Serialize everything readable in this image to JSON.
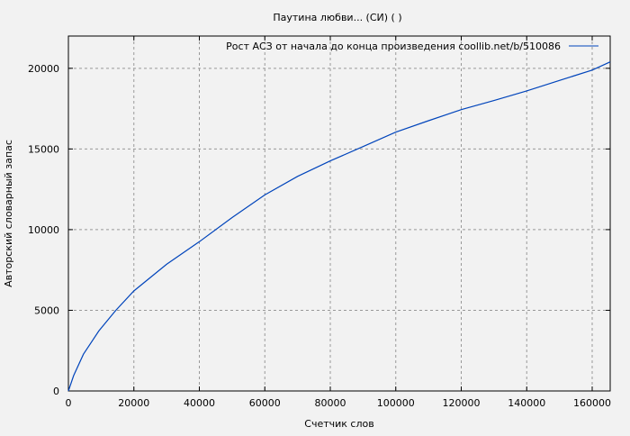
{
  "chart_data": {
    "type": "line",
    "title": "Паутина любви... (СИ) ( )",
    "xlabel": "Счетчик слов",
    "ylabel": "Авторский словарный запас",
    "xlim": [
      0,
      165500
    ],
    "ylim": [
      0,
      22000
    ],
    "xticks": [
      0,
      20000,
      40000,
      60000,
      80000,
      100000,
      120000,
      140000,
      160000
    ],
    "yticks": [
      0,
      5000,
      10000,
      15000,
      20000
    ],
    "grid": true,
    "legend_position": "top-right",
    "series": [
      {
        "name": "Рост АСЗ от начала до конца произведения  coollib.net/b/510086",
        "color": "#0044bb",
        "x": [
          0,
          1600,
          4600,
          9300,
          14500,
          20000,
          30000,
          40000,
          50000,
          60000,
          70000,
          80000,
          90000,
          100000,
          110000,
          120000,
          130000,
          140000,
          150000,
          160000,
          165500
        ],
        "y": [
          0,
          950,
          2280,
          3720,
          5000,
          6200,
          7850,
          9250,
          10750,
          12150,
          13300,
          14260,
          15150,
          16040,
          16750,
          17440,
          18000,
          18600,
          19250,
          19890,
          20400
        ]
      }
    ]
  }
}
